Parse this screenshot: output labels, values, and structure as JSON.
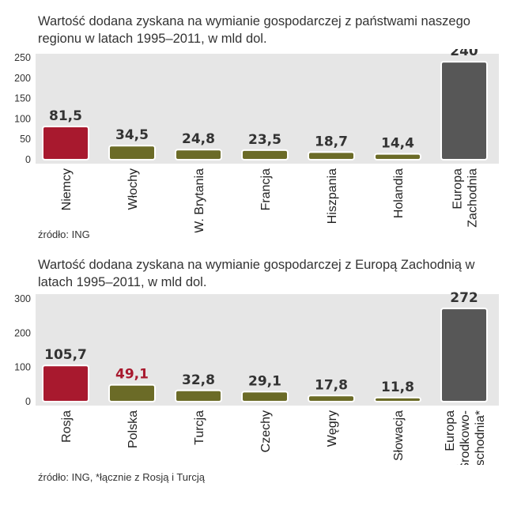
{
  "chart_data": [
    {
      "type": "bar",
      "title": "Wartość dodana zyskana na wymianie gospodarczej z państwami naszego regionu w latach 1995–2011, w mld dol.",
      "categories": [
        "Niemcy",
        "Włochy",
        "W. Brytania",
        "Francja",
        "Hiszpania",
        "Holandia",
        "Europa Zachodnia"
      ],
      "category_lines": [
        [
          "Niemcy"
        ],
        [
          "Włochy"
        ],
        [
          "W. Brytania"
        ],
        [
          "Francja"
        ],
        [
          "Hiszpania"
        ],
        [
          "Holandia"
        ],
        [
          "Europa",
          "Zachodnia"
        ]
      ],
      "values": [
        81.5,
        34.5,
        24.8,
        23.5,
        18.7,
        14.4,
        240
      ],
      "value_labels": [
        "81,5",
        "34,5",
        "24,8",
        "23,5",
        "18,7",
        "14,4",
        "240"
      ],
      "bar_colors": [
        "#a8192e",
        "#6b6b27",
        "#6b6b27",
        "#6b6b27",
        "#6b6b27",
        "#6b6b27",
        "#575757"
      ],
      "label_colors": [
        "#333333",
        "#333333",
        "#333333",
        "#333333",
        "#333333",
        "#333333",
        "#333333"
      ],
      "yticks": [
        0,
        50,
        100,
        150,
        200,
        250
      ],
      "ylim": [
        0,
        250
      ],
      "grid": false,
      "source": "źródło: ING"
    },
    {
      "type": "bar",
      "title": "Wartość dodana zyskana na wymianie gospodarczej z Europą Zachodnią w latach 1995–2011, w mld dol.",
      "categories": [
        "Rosja",
        "Polska",
        "Turcja",
        "Czechy",
        "Węgry",
        "Słowacja",
        "Europa Środkowo--Wschodnia*"
      ],
      "category_lines": [
        [
          "Rosja"
        ],
        [
          "Polska"
        ],
        [
          "Turcja"
        ],
        [
          "Czechy"
        ],
        [
          "Węgry"
        ],
        [
          "Słowacja"
        ],
        [
          "Europa",
          "Środkowo-",
          "-Wschodnia*"
        ]
      ],
      "values": [
        105.7,
        49.1,
        32.8,
        29.1,
        17.8,
        11.8,
        272
      ],
      "value_labels": [
        "105,7",
        "49,1",
        "32,8",
        "29,1",
        "17,8",
        "11,8",
        "272"
      ],
      "bar_colors": [
        "#a8192e",
        "#6b6b27",
        "#6b6b27",
        "#6b6b27",
        "#6b6b27",
        "#6b6b27",
        "#575757"
      ],
      "label_colors": [
        "#333333",
        "#a8192e",
        "#333333",
        "#333333",
        "#333333",
        "#333333",
        "#333333"
      ],
      "yticks": [
        0,
        100,
        200,
        300
      ],
      "ylim": [
        0,
        300
      ],
      "grid": false,
      "source": "źródło: ING, *łącznie z Rosją i Turcją"
    }
  ],
  "colors": {
    "panel_bg": "#e6e6e6",
    "accent_red": "#a8192e",
    "olive": "#6b6b27",
    "dark_gray": "#575757",
    "text": "#333333"
  }
}
